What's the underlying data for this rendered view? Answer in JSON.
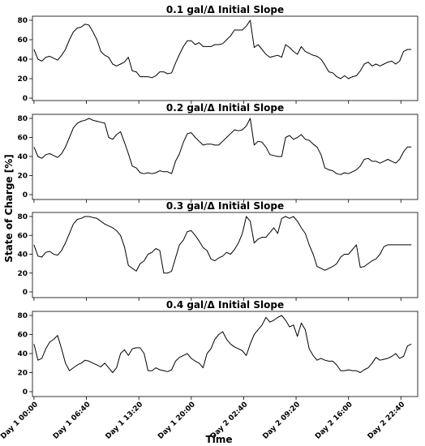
{
  "chart_data": {
    "type": "line",
    "ylabel": "State of Charge [%]",
    "xlabel": "Time",
    "ylim": [
      0,
      85
    ],
    "yticks": [
      0,
      20,
      40,
      60,
      80
    ],
    "xlim": [
      -12,
      2928
    ],
    "xticks": [
      {
        "value": 0,
        "label": "Day 1 00:00"
      },
      {
        "value": 400,
        "label": "Day 1 06:40"
      },
      {
        "value": 800,
        "label": "Day 1 13:20"
      },
      {
        "value": 1200,
        "label": "Day 1 20:00"
      },
      {
        "value": 1600,
        "label": "Day 2 02:40"
      },
      {
        "value": 2000,
        "label": "Day 2 09:20"
      },
      {
        "value": 2400,
        "label": "Day 2 16:00"
      },
      {
        "value": 2800,
        "label": "Day 2 22:40"
      }
    ],
    "x_unit": "minutes",
    "grid": false,
    "panels": [
      {
        "title": "0.1 gal/Δ Initial Slope",
        "x": [
          0,
          30,
          60,
          90,
          120,
          150,
          180,
          210,
          240,
          270,
          300,
          330,
          360,
          390,
          420,
          450,
          480,
          510,
          540,
          570,
          600,
          630,
          660,
          690,
          720,
          750,
          780,
          810,
          840,
          870,
          900,
          930,
          960,
          990,
          1020,
          1050,
          1080,
          1110,
          1140,
          1170,
          1200,
          1230,
          1260,
          1290,
          1320,
          1350,
          1380,
          1410,
          1440,
          1470,
          1500,
          1530,
          1560,
          1590,
          1620,
          1650,
          1680,
          1710,
          1740,
          1770,
          1800,
          1830,
          1860,
          1890,
          1920,
          1950,
          1980,
          2010,
          2040,
          2070,
          2100,
          2130,
          2160,
          2190,
          2220,
          2250,
          2280,
          2310,
          2340,
          2370,
          2400,
          2430,
          2460,
          2490,
          2520,
          2550,
          2580,
          2610,
          2640,
          2670,
          2700,
          2730,
          2760,
          2790,
          2820,
          2850,
          2880
        ],
        "y": [
          50,
          40,
          38,
          42,
          43,
          41,
          39,
          44,
          50,
          60,
          68,
          72,
          73,
          76,
          75,
          68,
          60,
          48,
          44,
          42,
          35,
          33,
          35,
          37,
          42,
          28,
          27,
          22,
          22,
          22,
          21,
          23,
          27,
          27,
          25,
          26,
          36,
          45,
          53,
          59,
          59,
          55,
          57,
          53,
          53,
          53,
          55,
          55,
          56,
          60,
          64,
          70,
          70,
          70,
          74,
          80,
          52,
          55,
          50,
          45,
          42,
          43,
          44,
          42,
          55,
          52,
          48,
          45,
          53,
          48,
          46,
          44,
          43,
          40,
          34,
          27,
          26,
          22,
          20,
          23,
          20,
          22,
          23,
          28,
          35,
          37,
          33,
          35,
          33,
          35,
          37,
          38,
          35,
          38,
          48,
          50,
          50
        ]
      },
      {
        "title": "0.2 gal/Δ Initial Slope",
        "x": [
          0,
          30,
          60,
          90,
          120,
          150,
          180,
          210,
          240,
          270,
          300,
          330,
          360,
          390,
          420,
          450,
          480,
          510,
          540,
          570,
          600,
          630,
          660,
          690,
          720,
          750,
          780,
          810,
          840,
          870,
          900,
          930,
          960,
          990,
          1020,
          1050,
          1080,
          1110,
          1140,
          1170,
          1200,
          1230,
          1260,
          1290,
          1320,
          1350,
          1380,
          1410,
          1440,
          1470,
          1500,
          1530,
          1560,
          1590,
          1620,
          1650,
          1680,
          1710,
          1740,
          1770,
          1800,
          1830,
          1860,
          1890,
          1920,
          1950,
          1980,
          2010,
          2040,
          2070,
          2100,
          2130,
          2160,
          2190,
          2220,
          2250,
          2280,
          2310,
          2340,
          2370,
          2400,
          2430,
          2460,
          2490,
          2520,
          2550,
          2580,
          2610,
          2640,
          2670,
          2700,
          2730,
          2760,
          2790,
          2820,
          2850,
          2880
        ],
        "y": [
          50,
          40,
          38,
          42,
          43,
          41,
          39,
          43,
          50,
          60,
          70,
          75,
          77,
          78,
          80,
          78,
          77,
          76,
          75,
          60,
          58,
          63,
          66,
          55,
          43,
          30,
          28,
          23,
          22,
          23,
          22,
          23,
          25,
          24,
          24,
          22,
          35,
          43,
          55,
          64,
          65,
          60,
          56,
          52,
          53,
          53,
          52,
          52,
          56,
          60,
          64,
          68,
          67,
          68,
          72,
          80,
          52,
          56,
          55,
          50,
          42,
          41,
          40,
          40,
          60,
          62,
          58,
          60,
          63,
          58,
          57,
          53,
          50,
          42,
          28,
          26,
          25,
          22,
          21,
          23,
          22,
          24,
          26,
          30,
          37,
          38,
          35,
          35,
          33,
          35,
          37,
          35,
          33,
          37,
          45,
          50,
          50
        ]
      },
      {
        "title": "0.3 gal/Δ Initial Slope",
        "x": [
          0,
          30,
          60,
          90,
          120,
          150,
          180,
          210,
          240,
          270,
          300,
          330,
          360,
          390,
          420,
          450,
          480,
          510,
          540,
          570,
          600,
          630,
          660,
          690,
          720,
          750,
          780,
          810,
          840,
          870,
          900,
          930,
          960,
          990,
          1020,
          1050,
          1080,
          1110,
          1140,
          1170,
          1200,
          1230,
          1260,
          1290,
          1320,
          1350,
          1380,
          1410,
          1440,
          1470,
          1500,
          1530,
          1560,
          1590,
          1620,
          1650,
          1680,
          1710,
          1740,
          1770,
          1800,
          1830,
          1860,
          1890,
          1920,
          1950,
          1980,
          2010,
          2040,
          2070,
          2100,
          2130,
          2160,
          2190,
          2220,
          2250,
          2280,
          2310,
          2340,
          2370,
          2400,
          2430,
          2460,
          2490,
          2520,
          2550,
          2580,
          2610,
          2640,
          2670,
          2700,
          2730,
          2760,
          2790,
          2820,
          2850,
          2880
        ],
        "y": [
          50,
          38,
          37,
          42,
          43,
          40,
          39,
          44,
          52,
          62,
          72,
          77,
          78,
          80,
          80,
          79,
          78,
          75,
          72,
          70,
          68,
          65,
          60,
          48,
          28,
          25,
          22,
          30,
          33,
          40,
          42,
          46,
          44,
          20,
          20,
          22,
          36,
          50,
          55,
          64,
          65,
          60,
          54,
          47,
          44,
          35,
          33,
          36,
          38,
          42,
          40,
          45,
          52,
          62,
          80,
          75,
          52,
          56,
          58,
          58,
          63,
          68,
          62,
          78,
          80,
          78,
          80,
          75,
          68,
          62,
          50,
          40,
          27,
          25,
          23,
          25,
          27,
          30,
          37,
          40,
          40,
          45,
          50,
          26,
          27,
          30,
          33,
          35,
          40,
          48,
          50,
          50,
          50,
          50,
          50,
          50,
          50
        ]
      },
      {
        "title": "0.4 gal/Δ Initial Slope",
        "x": [
          0,
          30,
          60,
          90,
          120,
          150,
          180,
          210,
          240,
          270,
          300,
          330,
          360,
          390,
          420,
          450,
          480,
          510,
          540,
          570,
          600,
          630,
          660,
          690,
          720,
          750,
          780,
          810,
          840,
          870,
          900,
          930,
          960,
          990,
          1020,
          1050,
          1080,
          1110,
          1140,
          1170,
          1200,
          1230,
          1260,
          1290,
          1320,
          1350,
          1380,
          1410,
          1440,
          1470,
          1500,
          1530,
          1560,
          1590,
          1620,
          1650,
          1680,
          1710,
          1740,
          1770,
          1800,
          1830,
          1860,
          1890,
          1920,
          1950,
          1980,
          2010,
          2040,
          2070,
          2100,
          2130,
          2160,
          2190,
          2220,
          2250,
          2280,
          2310,
          2340,
          2370,
          2400,
          2430,
          2460,
          2490,
          2520,
          2550,
          2580,
          2610,
          2640,
          2670,
          2700,
          2730,
          2760,
          2790,
          2820,
          2850,
          2880
        ],
        "y": [
          50,
          33,
          35,
          45,
          52,
          55,
          59,
          45,
          30,
          22,
          25,
          28,
          30,
          33,
          32,
          30,
          28,
          26,
          30,
          25,
          20,
          25,
          40,
          44,
          38,
          45,
          46,
          46,
          40,
          22,
          22,
          25,
          23,
          22,
          21,
          23,
          32,
          36,
          38,
          40,
          35,
          32,
          30,
          25,
          40,
          45,
          55,
          60,
          63,
          55,
          50,
          47,
          45,
          43,
          38,
          50,
          60,
          65,
          70,
          78,
          73,
          75,
          78,
          80,
          75,
          68,
          70,
          58,
          72,
          65,
          45,
          38,
          33,
          35,
          33,
          32,
          32,
          28,
          22,
          22,
          23,
          22,
          22,
          20,
          23,
          25,
          30,
          36,
          33,
          34,
          35,
          37,
          40,
          35,
          37,
          48,
          50
        ]
      }
    ]
  }
}
